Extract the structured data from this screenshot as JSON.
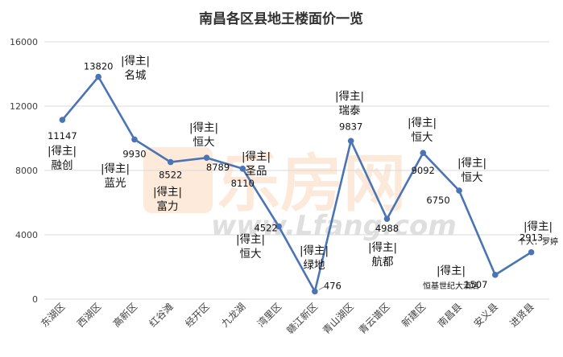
{
  "chart_data": {
    "type": "line",
    "title": "南昌各区县地王楼面价一览",
    "categories": [
      "东湖区",
      "西湖区",
      "高新区",
      "红谷滩",
      "经开区",
      "九龙湖",
      "湾里区",
      "赣江新区",
      "青山湖区",
      "青云谱区",
      "新建区",
      "南昌县",
      "安义县",
      "进贤县"
    ],
    "values": [
      11147,
      13820,
      9930,
      8522,
      8789,
      8110,
      4522,
      476,
      9837,
      4988,
      9092,
      6750,
      1507,
      2913
    ],
    "data_labels": [
      "11147",
      "13820",
      "9930",
      "8522",
      "8789",
      "8110",
      "4522",
      "476",
      "9837",
      "4988",
      "9092",
      "6750",
      "1507",
      "2913"
    ],
    "annotations": [
      {
        "lines": [
          "|得主|",
          "融创"
        ]
      },
      {
        "lines": [
          "|得主|",
          "名城"
        ]
      },
      {
        "lines": [
          "|得主|",
          "蓝光"
        ]
      },
      {
        "lines": [
          "|得主|",
          "富力"
        ]
      },
      {
        "lines": [
          "|得主|",
          "恒大"
        ]
      },
      {
        "lines": [
          "|得主|",
          "圣品"
        ]
      },
      {
        "lines": [
          "|得主|",
          "恒大"
        ]
      },
      {
        "lines": [
          "|得主|",
          "绿地"
        ]
      },
      {
        "lines": [
          "|得主|",
          "瑞泰"
        ]
      },
      {
        "lines": [
          "|得主|",
          "航都"
        ]
      },
      {
        "lines": [
          "|得主|",
          "恒大"
        ]
      },
      {
        "lines": [
          "|得主|",
          "恒大"
        ]
      },
      {
        "lines": [
          "|得主|",
          "恒基世纪大酒店"
        ]
      },
      {
        "lines": [
          "|得主|",
          "个人：罗婷"
        ]
      }
    ],
    "ylim": [
      0,
      16000
    ],
    "yticks": [
      0,
      4000,
      8000,
      12000,
      16000
    ],
    "grid": true,
    "legend": "none",
    "line_color": "#4a74b4",
    "grid_color": "#d9d9d9"
  },
  "watermark": {
    "cn": "乐房网",
    "en": "www.Lfang.com",
    "color": "#f5a05a"
  }
}
